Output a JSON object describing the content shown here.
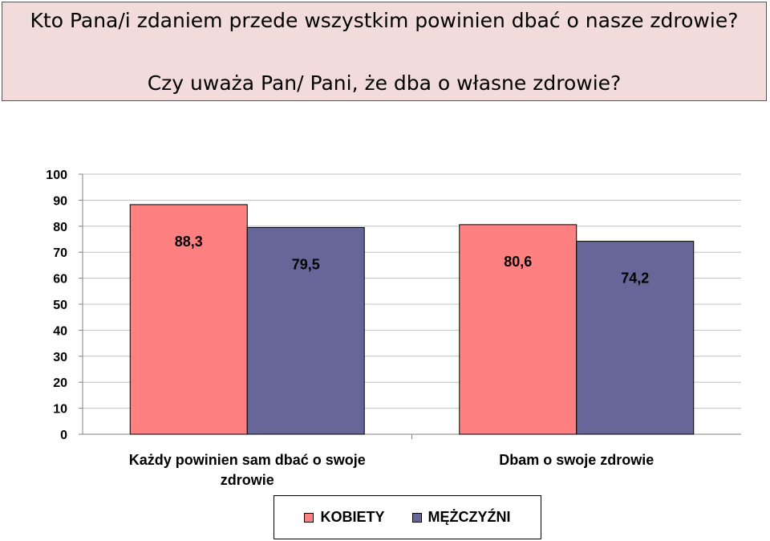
{
  "header": {
    "title": "Kto Pana/i zdaniem przede wszystkim powinien dbać o nasze zdrowie?",
    "subtitle": "Czy uważa Pan/ Pani, że dba o własne zdrowie?",
    "background": "#f2dcdb"
  },
  "chart_data": {
    "type": "bar",
    "categories": [
      "Każdy powinien sam dbać o swoje zdrowie",
      "Dbam o swoje zdrowie"
    ],
    "category_label_lines": [
      [
        "Każdy powinien sam dbać o swoje",
        "zdrowie"
      ],
      [
        "Dbam o swoje zdrowie"
      ]
    ],
    "series": [
      {
        "name": "KOBIETY",
        "values": [
          88.3,
          80.6
        ],
        "labels": [
          "88,3",
          "80,6"
        ],
        "color": "#ff8080"
      },
      {
        "name": "MĘŻCZYŹNI",
        "values": [
          79.5,
          74.2
        ],
        "labels": [
          "79,5",
          "74,2"
        ],
        "color": "#666699"
      }
    ],
    "ylim": [
      0,
      100
    ],
    "yticks": [
      0,
      10,
      20,
      30,
      40,
      50,
      60,
      70,
      80,
      90,
      100
    ],
    "grid": true,
    "plot_background": "#ffffff",
    "legend_position": "bottom"
  }
}
